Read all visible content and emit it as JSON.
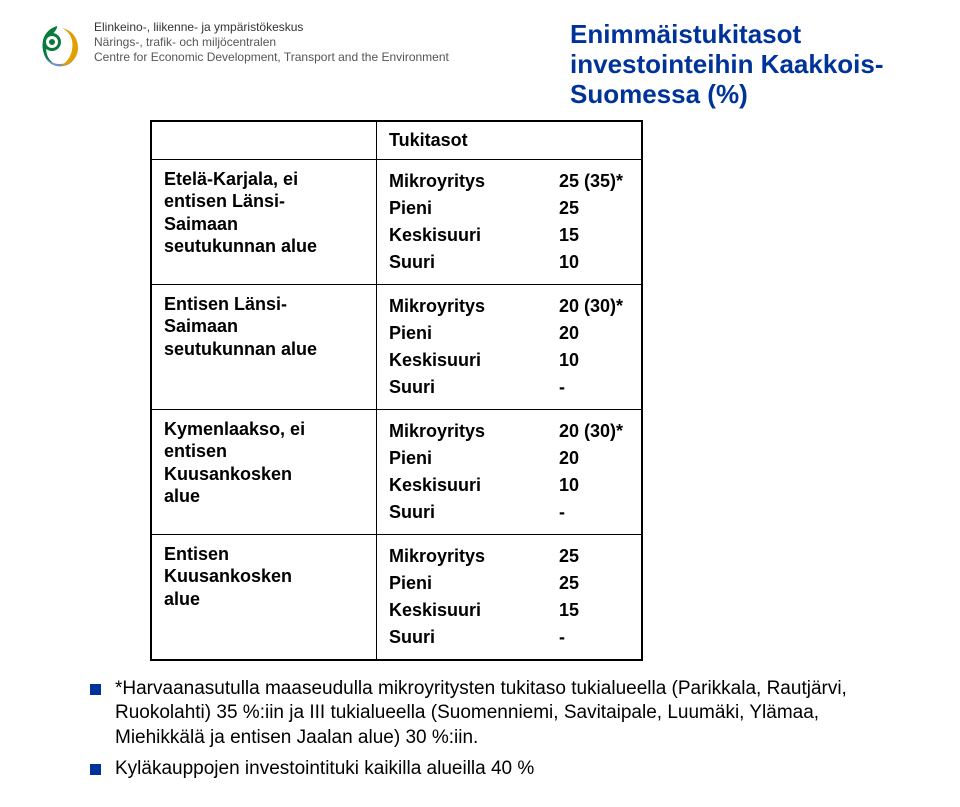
{
  "org": {
    "fi": "Elinkeino-, liikenne- ja ympäristökeskus",
    "sv": "Närings-, trafik- och miljöcentralen",
    "en": "Centre for Economic Development, Transport and the Environment"
  },
  "title_lines": [
    "Enimmäistukitasot",
    "investointeihin Kaakkois-",
    "Suomessa (%)"
  ],
  "title_color": "#003399",
  "table": {
    "header": "Tukitasot",
    "regions": [
      {
        "name_lines": [
          "Etelä-Karjala, ei",
          "entisen Länsi-",
          "Saimaan",
          "seutukunnan alue"
        ],
        "rows": [
          {
            "label": "Mikroyritys",
            "value": "25 (35)*"
          },
          {
            "label": "Pieni",
            "value": "25"
          },
          {
            "label": "Keskisuuri",
            "value": "15"
          },
          {
            "label": "Suuri",
            "value": "10"
          }
        ]
      },
      {
        "name_lines": [
          "Entisen Länsi-",
          "Saimaan",
          "seutukunnan alue"
        ],
        "rows": [
          {
            "label": "Mikroyritys",
            "value": "20 (30)*"
          },
          {
            "label": "Pieni",
            "value": "20"
          },
          {
            "label": "Keskisuuri",
            "value": "10"
          },
          {
            "label": "Suuri",
            "value": "-"
          }
        ]
      },
      {
        "name_lines": [
          "Kymenlaakso, ei",
          "entisen",
          "Kuusankosken",
          "alue"
        ],
        "rows": [
          {
            "label": "Mikroyritys",
            "value": "20 (30)*"
          },
          {
            "label": "Pieni",
            "value": "20"
          },
          {
            "label": "Keskisuuri",
            "value": "10"
          },
          {
            "label": "Suuri",
            "value": "-"
          }
        ]
      },
      {
        "name_lines": [
          "Entisen",
          "Kuusankosken",
          "alue"
        ],
        "rows": [
          {
            "label": "Mikroyritys",
            "value": "25"
          },
          {
            "label": "Pieni",
            "value": "25"
          },
          {
            "label": "Keskisuuri",
            "value": "15"
          },
          {
            "label": "Suuri",
            "value": "-"
          }
        ]
      }
    ]
  },
  "footnotes": [
    "*Harvaanasutulla maaseudulla mikroyritysten tukitaso tukialueella (Parikkala, Rautjärvi, Ruokolahti) 35 %:iin ja III tukialueella (Suomenniemi, Savitaipale, Luumäki, Ylämaa, Miehikkälä ja entisen Jaalan alue) 30 %:iin.",
    "Kyläkauppojen investointituki kaikilla alueilla 40 %"
  ]
}
